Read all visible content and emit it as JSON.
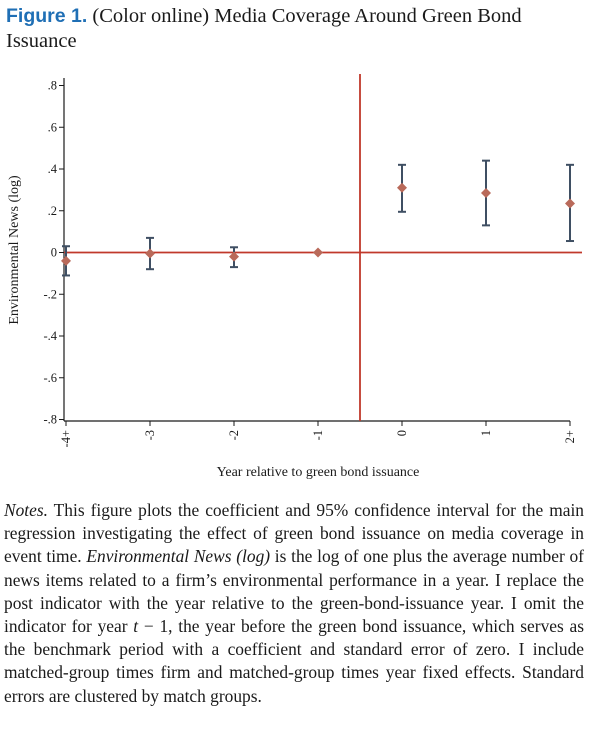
{
  "caption": {
    "figure_label": "Figure 1.",
    "title": "(Color online) Media Coverage Around Green Bond Issuance"
  },
  "notes": {
    "label": "Notes.",
    "t1": "This figure plots the coefficient and 95% confidence interval for the main regression investigating the effect of green bond issuance on media coverage in event time.",
    "var_name": "Environmental News (log)",
    "t2": "is the log of one plus the average number of news items related to a firm’s environmental performance in a year. I replace the post indicator with the year relative to the green-bond-issuance year. I omit the indicator for year",
    "t_symbol": "t",
    "t3": "− 1, the year before the green bond issuance, which serves as the benchmark period with a coefficient and standard error of zero. I include matched-group times firm and matched-group times year fixed effects. Standard errors are clustered by match groups."
  },
  "chart_data": {
    "type": "scatter",
    "title": "",
    "xlabel": "Year relative to green bond issuance",
    "ylabel": "Environmental News (log)",
    "x_ticks": [
      "-4+",
      "-3",
      "-2",
      "-1",
      "0",
      "1",
      "2+"
    ],
    "y_ticks": [
      ".8",
      ".6",
      ".4",
      ".2",
      "0",
      "-.2",
      "-.4",
      "-.6",
      "-.8"
    ],
    "y_tick_values": [
      0.8,
      0.6,
      0.4,
      0.2,
      0,
      -0.2,
      -0.4,
      -0.6,
      -0.8
    ],
    "ylim": [
      -0.8,
      0.8
    ],
    "points": [
      {
        "x": "-4+",
        "coef": -0.04,
        "ci": [
          -0.11,
          0.03
        ]
      },
      {
        "x": "-3",
        "coef": -0.005,
        "ci": [
          -0.08,
          0.07
        ]
      },
      {
        "x": "-2",
        "coef": -0.02,
        "ci": [
          -0.07,
          0.025
        ]
      },
      {
        "x": "-1",
        "coef": 0.0,
        "ci": [
          0.0,
          0.0
        ]
      },
      {
        "x": "0",
        "coef": 0.31,
        "ci": [
          0.195,
          0.42
        ]
      },
      {
        "x": "1",
        "coef": 0.285,
        "ci": [
          0.13,
          0.44
        ]
      },
      {
        "x": "2+",
        "coef": 0.235,
        "ci": [
          0.055,
          0.42
        ]
      }
    ],
    "reference_lines": {
      "horizontal_y": 0,
      "vertical_x": -0.5
    },
    "grid": false,
    "colors": {
      "marker": "#b96a5a",
      "ci": "#3f4f63",
      "reference": "#c0392b",
      "axis": "#1a1a1a"
    }
  }
}
